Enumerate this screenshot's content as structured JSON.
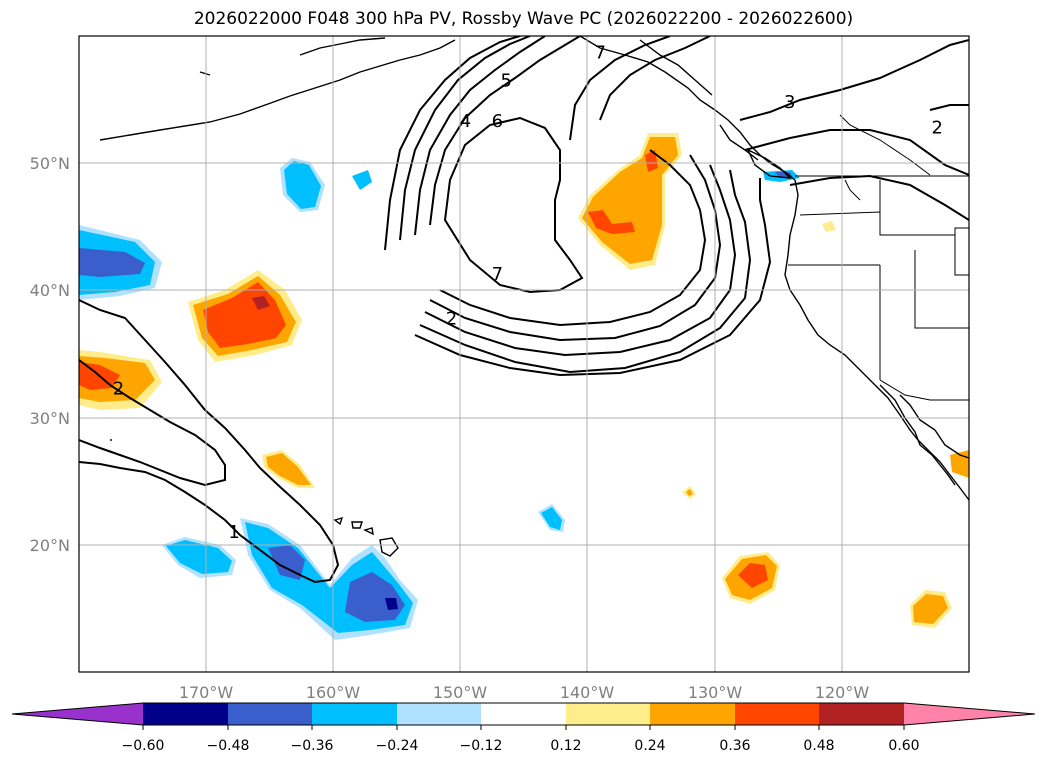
{
  "title": "2026022000 F048 300 hPa PV, Rossby Wave PC (2026022200 - 2026022600)",
  "map": {
    "projection": "plate carree",
    "lon_range": [
      -180,
      -110
    ],
    "lat_range": [
      10,
      60
    ],
    "lon_ticks": [
      {
        "value": -170,
        "label": "170°W"
      },
      {
        "value": -160,
        "label": "160°W"
      },
      {
        "value": -150,
        "label": "150°W"
      },
      {
        "value": -140,
        "label": "140°W"
      },
      {
        "value": -130,
        "label": "130°W"
      },
      {
        "value": -120,
        "label": "120°W"
      }
    ],
    "lat_ticks": [
      {
        "value": 20,
        "label": "20°N"
      },
      {
        "value": 30,
        "label": "30°N"
      },
      {
        "value": 40,
        "label": "40°N"
      },
      {
        "value": 50,
        "label": "50°N"
      }
    ],
    "grid": true,
    "contour_labels": [
      {
        "text": "7",
        "lon": -139,
        "lat": 58.7
      },
      {
        "text": "5",
        "lon": -146.4,
        "lat": 56.5
      },
      {
        "text": "4",
        "lon": -149.6,
        "lat": 53.3
      },
      {
        "text": "6",
        "lon": -147.1,
        "lat": 53.3
      },
      {
        "text": "7",
        "lon": -147.1,
        "lat": 41.3
      },
      {
        "text": "2",
        "lon": -150.7,
        "lat": 37.8
      },
      {
        "text": "3",
        "lon": -124.1,
        "lat": 54.8
      },
      {
        "text": "2",
        "lon": -112.5,
        "lat": 52.8
      },
      {
        "text": "2",
        "lon": -176.9,
        "lat": 32.3
      },
      {
        "text": "1",
        "lon": -167.8,
        "lat": 21.0
      }
    ]
  },
  "colorbar": {
    "levels": [
      "−0.60",
      "−0.48",
      "−0.36",
      "−0.24",
      "−0.12",
      "0.12",
      "0.24",
      "0.36",
      "0.48",
      "0.60"
    ],
    "colors": [
      "#9932cc",
      "#00008b",
      "#3a5fcd",
      "#00bfff",
      "#b0e2ff",
      "#ffffff",
      "#ffec8b",
      "#ffa500",
      "#ff4500",
      "#b22222",
      "#ff82ab"
    ]
  }
}
